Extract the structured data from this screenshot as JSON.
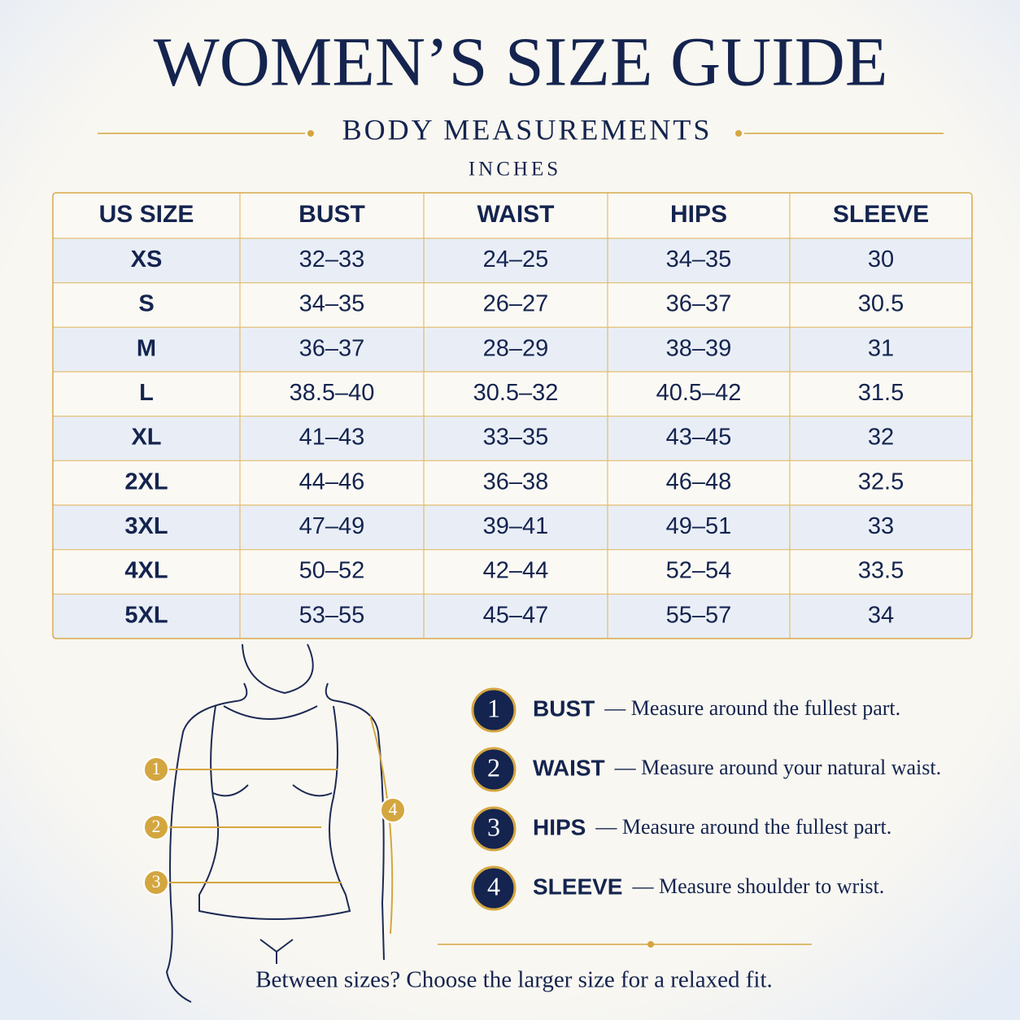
{
  "header": {
    "title": "WOMEN’S SIZE GUIDE",
    "subtitle": "BODY MEASUREMENTS",
    "unit": "INCHES"
  },
  "table": {
    "columns": [
      "US SIZE",
      "BUST",
      "WAIST",
      "HIPS",
      "SLEEVE"
    ],
    "rows": [
      [
        "XS",
        "32–33",
        "24–25",
        "34–35",
        "30"
      ],
      [
        "S",
        "34–35",
        "26–27",
        "36–37",
        "30.5"
      ],
      [
        "M",
        "36–37",
        "28–29",
        "38–39",
        "31"
      ],
      [
        "L",
        "38.5–40",
        "30.5–32",
        "40.5–42",
        "31.5"
      ],
      [
        "XL",
        "41–43",
        "33–35",
        "43–45",
        "32"
      ],
      [
        "2XL",
        "44–46",
        "36–38",
        "46–48",
        "32.5"
      ],
      [
        "3XL",
        "47–49",
        "39–41",
        "49–51",
        "33"
      ],
      [
        "4XL",
        "50–52",
        "42–44",
        "52–54",
        "33.5"
      ],
      [
        "5XL",
        "53–55",
        "45–47",
        "55–57",
        "34"
      ]
    ]
  },
  "guide": {
    "items": [
      {
        "number": "1",
        "label": "BUST",
        "text": "— Measure around the fullest part."
      },
      {
        "number": "2",
        "label": "WAIST",
        "text": "— Measure around your natural waist."
      },
      {
        "number": "3",
        "label": "HIPS",
        "text": "— Measure around the fullest part."
      },
      {
        "number": "4",
        "label": "SLEEVE",
        "text": "— Measure shoulder to wrist."
      }
    ]
  },
  "footer": {
    "note": "Between sizes? Choose the larger size for a relaxed fit."
  }
}
